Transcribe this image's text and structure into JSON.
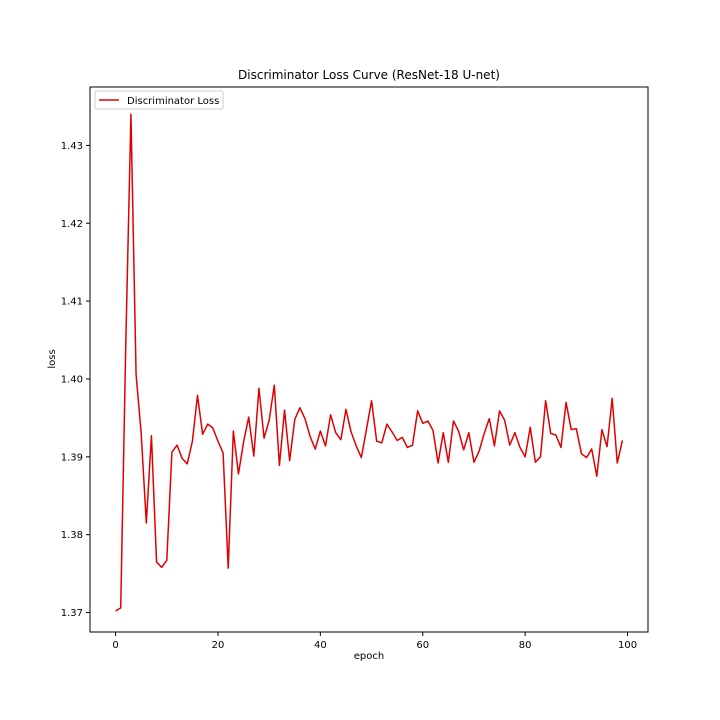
{
  "chart_data": {
    "type": "line",
    "title": "Discriminator Loss Curve (ResNet-18 U-net)",
    "xlabel": "epoch",
    "ylabel": "loss",
    "xlim": [
      -5,
      104
    ],
    "ylim": [
      1.3675,
      1.4375
    ],
    "xticks": [
      0,
      20,
      40,
      60,
      80,
      100
    ],
    "yticks": [
      1.37,
      1.38,
      1.39,
      1.4,
      1.41,
      1.42,
      1.43
    ],
    "ytick_labels": [
      "1.37",
      "1.38",
      "1.39",
      "1.40",
      "1.41",
      "1.42",
      "1.43"
    ],
    "grid": false,
    "legend_position": "top-left",
    "series": [
      {
        "name": "Discriminator Loss",
        "color": "#e00000",
        "x": [
          0,
          1,
          2,
          3,
          4,
          5,
          6,
          7,
          8,
          9,
          10,
          11,
          12,
          13,
          14,
          15,
          16,
          17,
          18,
          19,
          20,
          21,
          22,
          23,
          24,
          25,
          26,
          27,
          28,
          29,
          30,
          31,
          32,
          33,
          34,
          35,
          36,
          37,
          38,
          39,
          40,
          41,
          42,
          43,
          44,
          45,
          46,
          47,
          48,
          49,
          50,
          51,
          52,
          53,
          54,
          55,
          56,
          57,
          58,
          59,
          60,
          61,
          62,
          63,
          64,
          65,
          66,
          67,
          68,
          69,
          70,
          71,
          72,
          73,
          74,
          75,
          76,
          77,
          78,
          79,
          80,
          81,
          82,
          83,
          84,
          85,
          86,
          87,
          88,
          89,
          90,
          91,
          92,
          93,
          94,
          95,
          96,
          97,
          98,
          99
        ],
        "values": [
          1.3702,
          1.3706,
          1.4048,
          1.434,
          1.4006,
          1.393,
          1.3815,
          1.3927,
          1.3765,
          1.3758,
          1.3767,
          1.3906,
          1.3915,
          1.3898,
          1.3891,
          1.392,
          1.3979,
          1.3929,
          1.3942,
          1.3937,
          1.392,
          1.3905,
          1.3757,
          1.3933,
          1.3878,
          1.3919,
          1.3951,
          1.3901,
          1.3988,
          1.3924,
          1.3947,
          1.3992,
          1.3889,
          1.396,
          1.3895,
          1.3948,
          1.3963,
          1.3949,
          1.3926,
          1.391,
          1.3933,
          1.3914,
          1.3954,
          1.3931,
          1.3922,
          1.3961,
          1.3932,
          1.3914,
          1.3899,
          1.3935,
          1.3972,
          1.392,
          1.3918,
          1.3942,
          1.3932,
          1.3921,
          1.3925,
          1.3912,
          1.3915,
          1.3959,
          1.3943,
          1.3946,
          1.3934,
          1.3892,
          1.3931,
          1.3893,
          1.3946,
          1.3933,
          1.3909,
          1.3931,
          1.3893,
          1.3907,
          1.393,
          1.3949,
          1.3914,
          1.3959,
          1.3947,
          1.3915,
          1.3931,
          1.3912,
          1.39,
          1.3938,
          1.3893,
          1.39,
          1.3972,
          1.393,
          1.3928,
          1.3912,
          1.397,
          1.3935,
          1.3936,
          1.3904,
          1.3899,
          1.391,
          1.3875,
          1.3935,
          1.3913,
          1.3975,
          1.3892,
          1.3921
        ]
      }
    ]
  }
}
